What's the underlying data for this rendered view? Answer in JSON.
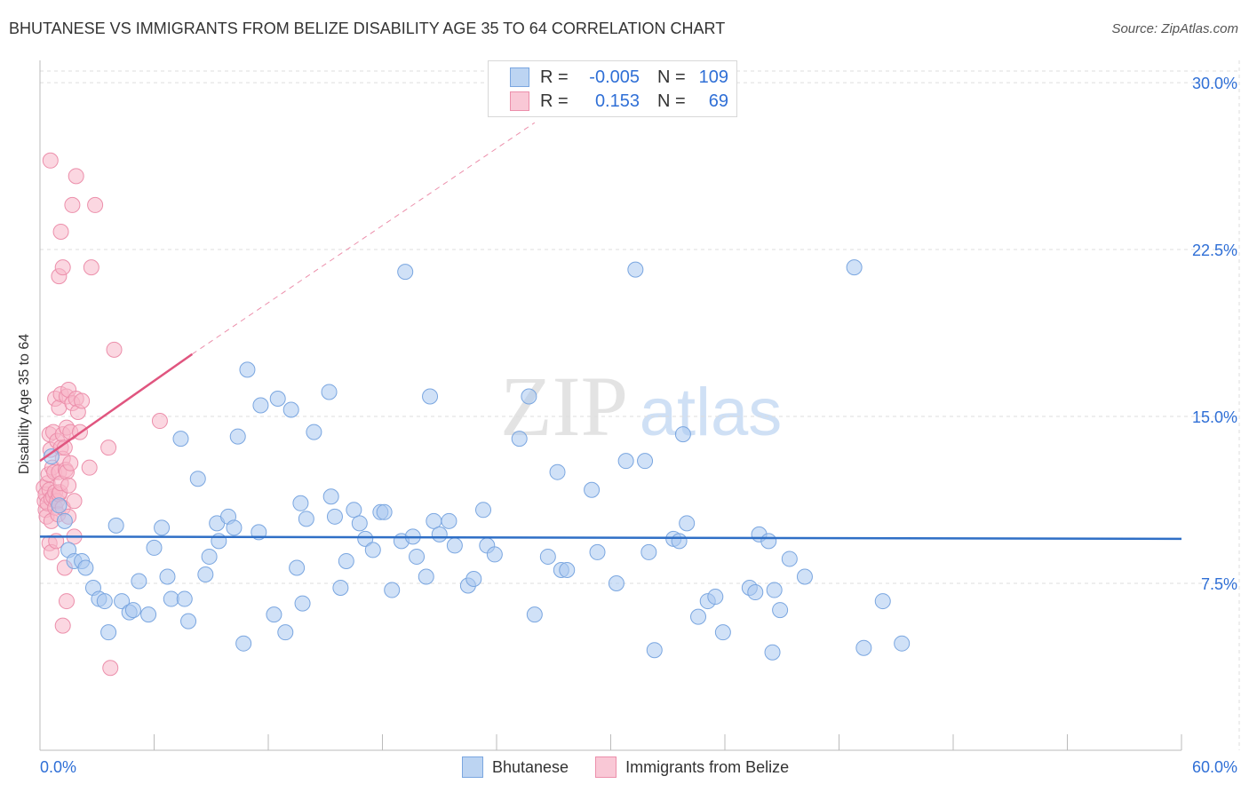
{
  "title": "BHUTANESE VS IMMIGRANTS FROM BELIZE DISABILITY AGE 35 TO 64 CORRELATION CHART",
  "source": "Source: ZipAtlas.com",
  "watermark": {
    "zip": "ZIP",
    "atlas": "atlas"
  },
  "legend_top": {
    "rows": [
      {
        "r_label": "R =",
        "r_value": "-0.005",
        "n_label": "N =",
        "n_value": "109"
      },
      {
        "r_label": "R =",
        "r_value": "0.153",
        "n_label": "N =",
        "n_value": "69"
      }
    ]
  },
  "legend_bottom": {
    "series1": "Bhutanese",
    "series2": "Immigrants from Belize"
  },
  "colors": {
    "blue_fill": "#a9c8f0",
    "blue_stroke": "#7aa6e0",
    "blue_line": "#2f6fc6",
    "pink_fill": "#f7b6c8",
    "pink_stroke": "#ec8fab",
    "pink_line": "#e0557f",
    "grid": "#dddddd",
    "tick_text": "#2f6fd6"
  },
  "chart_data": {
    "type": "scatter",
    "title": "BHUTANESE VS IMMIGRANTS FROM BELIZE DISABILITY AGE 35 TO 64 CORRELATION CHART",
    "xlabel": "",
    "ylabel": "Disability Age 35 to 64",
    "xlim": [
      0,
      60
    ],
    "ylim": [
      0,
      31
    ],
    "x_tick_labels": [
      "0.0%",
      "60.0%"
    ],
    "y_ticks": [
      7.5,
      15.0,
      22.5,
      30.0
    ],
    "y_tick_labels": [
      "7.5%",
      "15.0%",
      "22.5%",
      "30.0%"
    ],
    "series": [
      {
        "name": "Bhutanese",
        "R": -0.005,
        "N": 109,
        "trend": {
          "x0": 0,
          "y0": 9.6,
          "x1": 60,
          "y1": 9.5
        },
        "points": [
          [
            0.6,
            13.2
          ],
          [
            1.0,
            11.0
          ],
          [
            1.3,
            10.3
          ],
          [
            1.5,
            9.0
          ],
          [
            1.8,
            8.5
          ],
          [
            2.2,
            8.5
          ],
          [
            2.4,
            8.2
          ],
          [
            2.8,
            7.3
          ],
          [
            3.1,
            6.8
          ],
          [
            3.4,
            6.7
          ],
          [
            3.6,
            5.3
          ],
          [
            4.0,
            10.1
          ],
          [
            4.3,
            6.7
          ],
          [
            4.7,
            6.2
          ],
          [
            4.9,
            6.3
          ],
          [
            5.2,
            7.6
          ],
          [
            5.7,
            6.1
          ],
          [
            6.0,
            9.1
          ],
          [
            6.4,
            10.0
          ],
          [
            6.7,
            7.8
          ],
          [
            6.9,
            6.8
          ],
          [
            7.4,
            14.0
          ],
          [
            7.6,
            6.8
          ],
          [
            7.8,
            5.8
          ],
          [
            8.3,
            12.2
          ],
          [
            8.7,
            7.9
          ],
          [
            8.9,
            8.7
          ],
          [
            9.3,
            10.2
          ],
          [
            9.4,
            9.4
          ],
          [
            9.9,
            10.5
          ],
          [
            10.2,
            10.0
          ],
          [
            10.4,
            14.1
          ],
          [
            10.7,
            4.8
          ],
          [
            10.9,
            17.1
          ],
          [
            11.5,
            9.8
          ],
          [
            11.6,
            15.5
          ],
          [
            12.3,
            6.1
          ],
          [
            12.5,
            15.8
          ],
          [
            12.9,
            5.3
          ],
          [
            13.2,
            15.3
          ],
          [
            13.5,
            8.2
          ],
          [
            13.7,
            11.1
          ],
          [
            13.8,
            6.6
          ],
          [
            14.0,
            10.4
          ],
          [
            14.4,
            14.3
          ],
          [
            15.2,
            16.1
          ],
          [
            15.3,
            11.4
          ],
          [
            15.5,
            10.5
          ],
          [
            15.8,
            7.3
          ],
          [
            16.1,
            8.5
          ],
          [
            16.5,
            10.8
          ],
          [
            16.8,
            10.2
          ],
          [
            17.1,
            9.5
          ],
          [
            17.5,
            9.0
          ],
          [
            17.9,
            10.7
          ],
          [
            18.1,
            10.7
          ],
          [
            18.5,
            7.2
          ],
          [
            19.0,
            9.4
          ],
          [
            19.2,
            21.5
          ],
          [
            19.6,
            9.6
          ],
          [
            19.8,
            8.7
          ],
          [
            20.3,
            7.8
          ],
          [
            20.5,
            15.9
          ],
          [
            20.7,
            10.3
          ],
          [
            21.0,
            9.7
          ],
          [
            21.5,
            10.3
          ],
          [
            21.8,
            9.2
          ],
          [
            22.5,
            7.4
          ],
          [
            22.8,
            7.7
          ],
          [
            23.3,
            10.8
          ],
          [
            23.5,
            9.2
          ],
          [
            23.9,
            8.8
          ],
          [
            25.2,
            14.0
          ],
          [
            25.7,
            15.9
          ],
          [
            26.0,
            6.1
          ],
          [
            26.7,
            8.7
          ],
          [
            27.2,
            12.5
          ],
          [
            27.4,
            8.1
          ],
          [
            27.7,
            8.1
          ],
          [
            29.0,
            11.7
          ],
          [
            29.3,
            8.9
          ],
          [
            30.3,
            7.5
          ],
          [
            30.8,
            13.0
          ],
          [
            31.3,
            21.6
          ],
          [
            31.8,
            13.0
          ],
          [
            32.0,
            8.9
          ],
          [
            32.3,
            4.5
          ],
          [
            33.3,
            9.5
          ],
          [
            33.6,
            9.4
          ],
          [
            33.8,
            14.2
          ],
          [
            34.0,
            10.2
          ],
          [
            34.6,
            6.0
          ],
          [
            35.1,
            6.7
          ],
          [
            35.5,
            6.9
          ],
          [
            35.9,
            5.3
          ],
          [
            37.3,
            7.3
          ],
          [
            37.6,
            7.1
          ],
          [
            37.8,
            9.7
          ],
          [
            38.3,
            9.4
          ],
          [
            38.5,
            4.4
          ],
          [
            38.6,
            7.2
          ],
          [
            38.9,
            6.3
          ],
          [
            39.4,
            8.6
          ],
          [
            40.2,
            7.8
          ],
          [
            42.8,
            21.7
          ],
          [
            43.3,
            4.6
          ],
          [
            44.3,
            6.7
          ],
          [
            45.3,
            4.8
          ]
        ]
      },
      {
        "name": "Immigrants from Belize",
        "R": 0.153,
        "N": 69,
        "trend": {
          "x0": 0,
          "y0": 13.0,
          "x1": 8.0,
          "y1": 17.8
        },
        "trend_ext": {
          "x0": 8.0,
          "y0": 17.8,
          "x1": 26.0,
          "y1": 28.2
        },
        "points": [
          [
            0.2,
            11.8
          ],
          [
            0.25,
            11.2
          ],
          [
            0.3,
            10.8
          ],
          [
            0.3,
            11.5
          ],
          [
            0.35,
            10.5
          ],
          [
            0.4,
            12.0
          ],
          [
            0.4,
            11.1
          ],
          [
            0.45,
            12.4
          ],
          [
            0.5,
            9.3
          ],
          [
            0.5,
            11.7
          ],
          [
            0.5,
            14.2
          ],
          [
            0.55,
            13.5
          ],
          [
            0.6,
            8.9
          ],
          [
            0.6,
            10.3
          ],
          [
            0.6,
            11.3
          ],
          [
            0.65,
            12.7
          ],
          [
            0.7,
            11.4
          ],
          [
            0.7,
            14.3
          ],
          [
            0.75,
            12.5
          ],
          [
            0.8,
            10.9
          ],
          [
            0.8,
            11.6
          ],
          [
            0.8,
            15.8
          ],
          [
            0.85,
            9.4
          ],
          [
            0.9,
            11.2
          ],
          [
            0.9,
            13.9
          ],
          [
            0.95,
            10.6
          ],
          [
            1.0,
            11.5
          ],
          [
            1.0,
            12.5
          ],
          [
            1.0,
            15.4
          ],
          [
            1.0,
            21.3
          ],
          [
            1.05,
            11.6
          ],
          [
            1.1,
            12.0
          ],
          [
            1.1,
            13.6
          ],
          [
            1.1,
            16.0
          ],
          [
            1.1,
            23.3
          ],
          [
            1.2,
            5.6
          ],
          [
            1.2,
            10.9
          ],
          [
            1.2,
            13.1
          ],
          [
            1.2,
            14.2
          ],
          [
            1.2,
            21.7
          ],
          [
            1.3,
            8.2
          ],
          [
            1.3,
            13.6
          ],
          [
            1.35,
            12.6
          ],
          [
            1.4,
            6.7
          ],
          [
            1.4,
            12.5
          ],
          [
            1.4,
            14.5
          ],
          [
            1.4,
            15.9
          ],
          [
            1.5,
            10.5
          ],
          [
            1.5,
            11.9
          ],
          [
            1.5,
            16.2
          ],
          [
            1.6,
            12.9
          ],
          [
            1.6,
            14.3
          ],
          [
            1.7,
            15.6
          ],
          [
            1.7,
            24.5
          ],
          [
            1.8,
            9.6
          ],
          [
            1.8,
            11.2
          ],
          [
            1.9,
            15.8
          ],
          [
            1.9,
            25.8
          ],
          [
            2.0,
            15.2
          ],
          [
            2.1,
            14.3
          ],
          [
            2.2,
            15.7
          ],
          [
            2.6,
            12.7
          ],
          [
            2.7,
            21.7
          ],
          [
            2.9,
            24.5
          ],
          [
            3.6,
            13.6
          ],
          [
            3.7,
            3.7
          ],
          [
            3.9,
            18.0
          ],
          [
            6.3,
            14.8
          ],
          [
            0.55,
            26.5
          ]
        ]
      }
    ]
  }
}
